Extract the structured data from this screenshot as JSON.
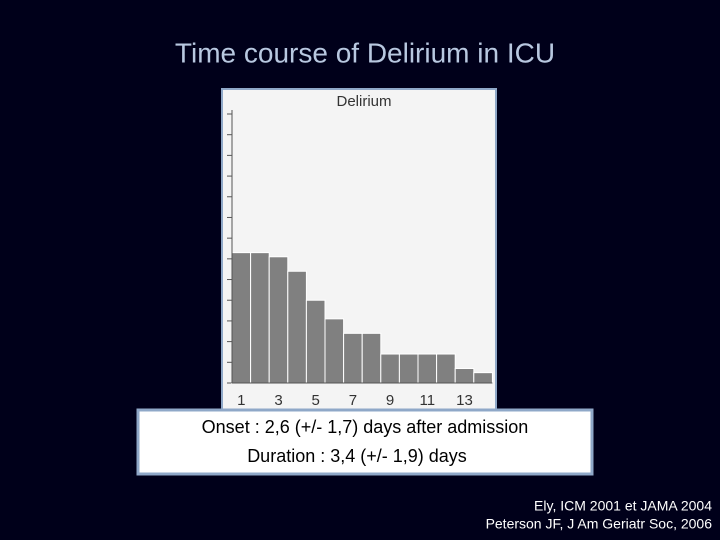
{
  "slide": {
    "title": "Time course of Delirium in ICU",
    "summary": [
      "Onset : 2,6 (+/- 1,7) days  after admission",
      "Duration : 3,4 (+/- 1,9) days"
    ],
    "references": [
      "Ely, ICM 2001 et JAMA 2004",
      "Peterson JF, J Am Geriatr Soc, 2006"
    ]
  },
  "chart_data": {
    "type": "bar",
    "title": "Delirium",
    "categories": [
      1,
      null,
      3,
      null,
      5,
      null,
      7,
      null,
      9,
      null,
      11,
      null,
      13,
      null
    ],
    "values": [
      6.3,
      6.3,
      6.1,
      5.4,
      4.0,
      3.1,
      2.4,
      2.4,
      1.4,
      1.4,
      1.4,
      1.4,
      0.7,
      0.5
    ],
    "color": "#808080",
    "ylim": [
      0,
      13
    ],
    "yticks": [
      0,
      1,
      2,
      3,
      4,
      5,
      6,
      7,
      8,
      9,
      10,
      11,
      12,
      13
    ]
  }
}
